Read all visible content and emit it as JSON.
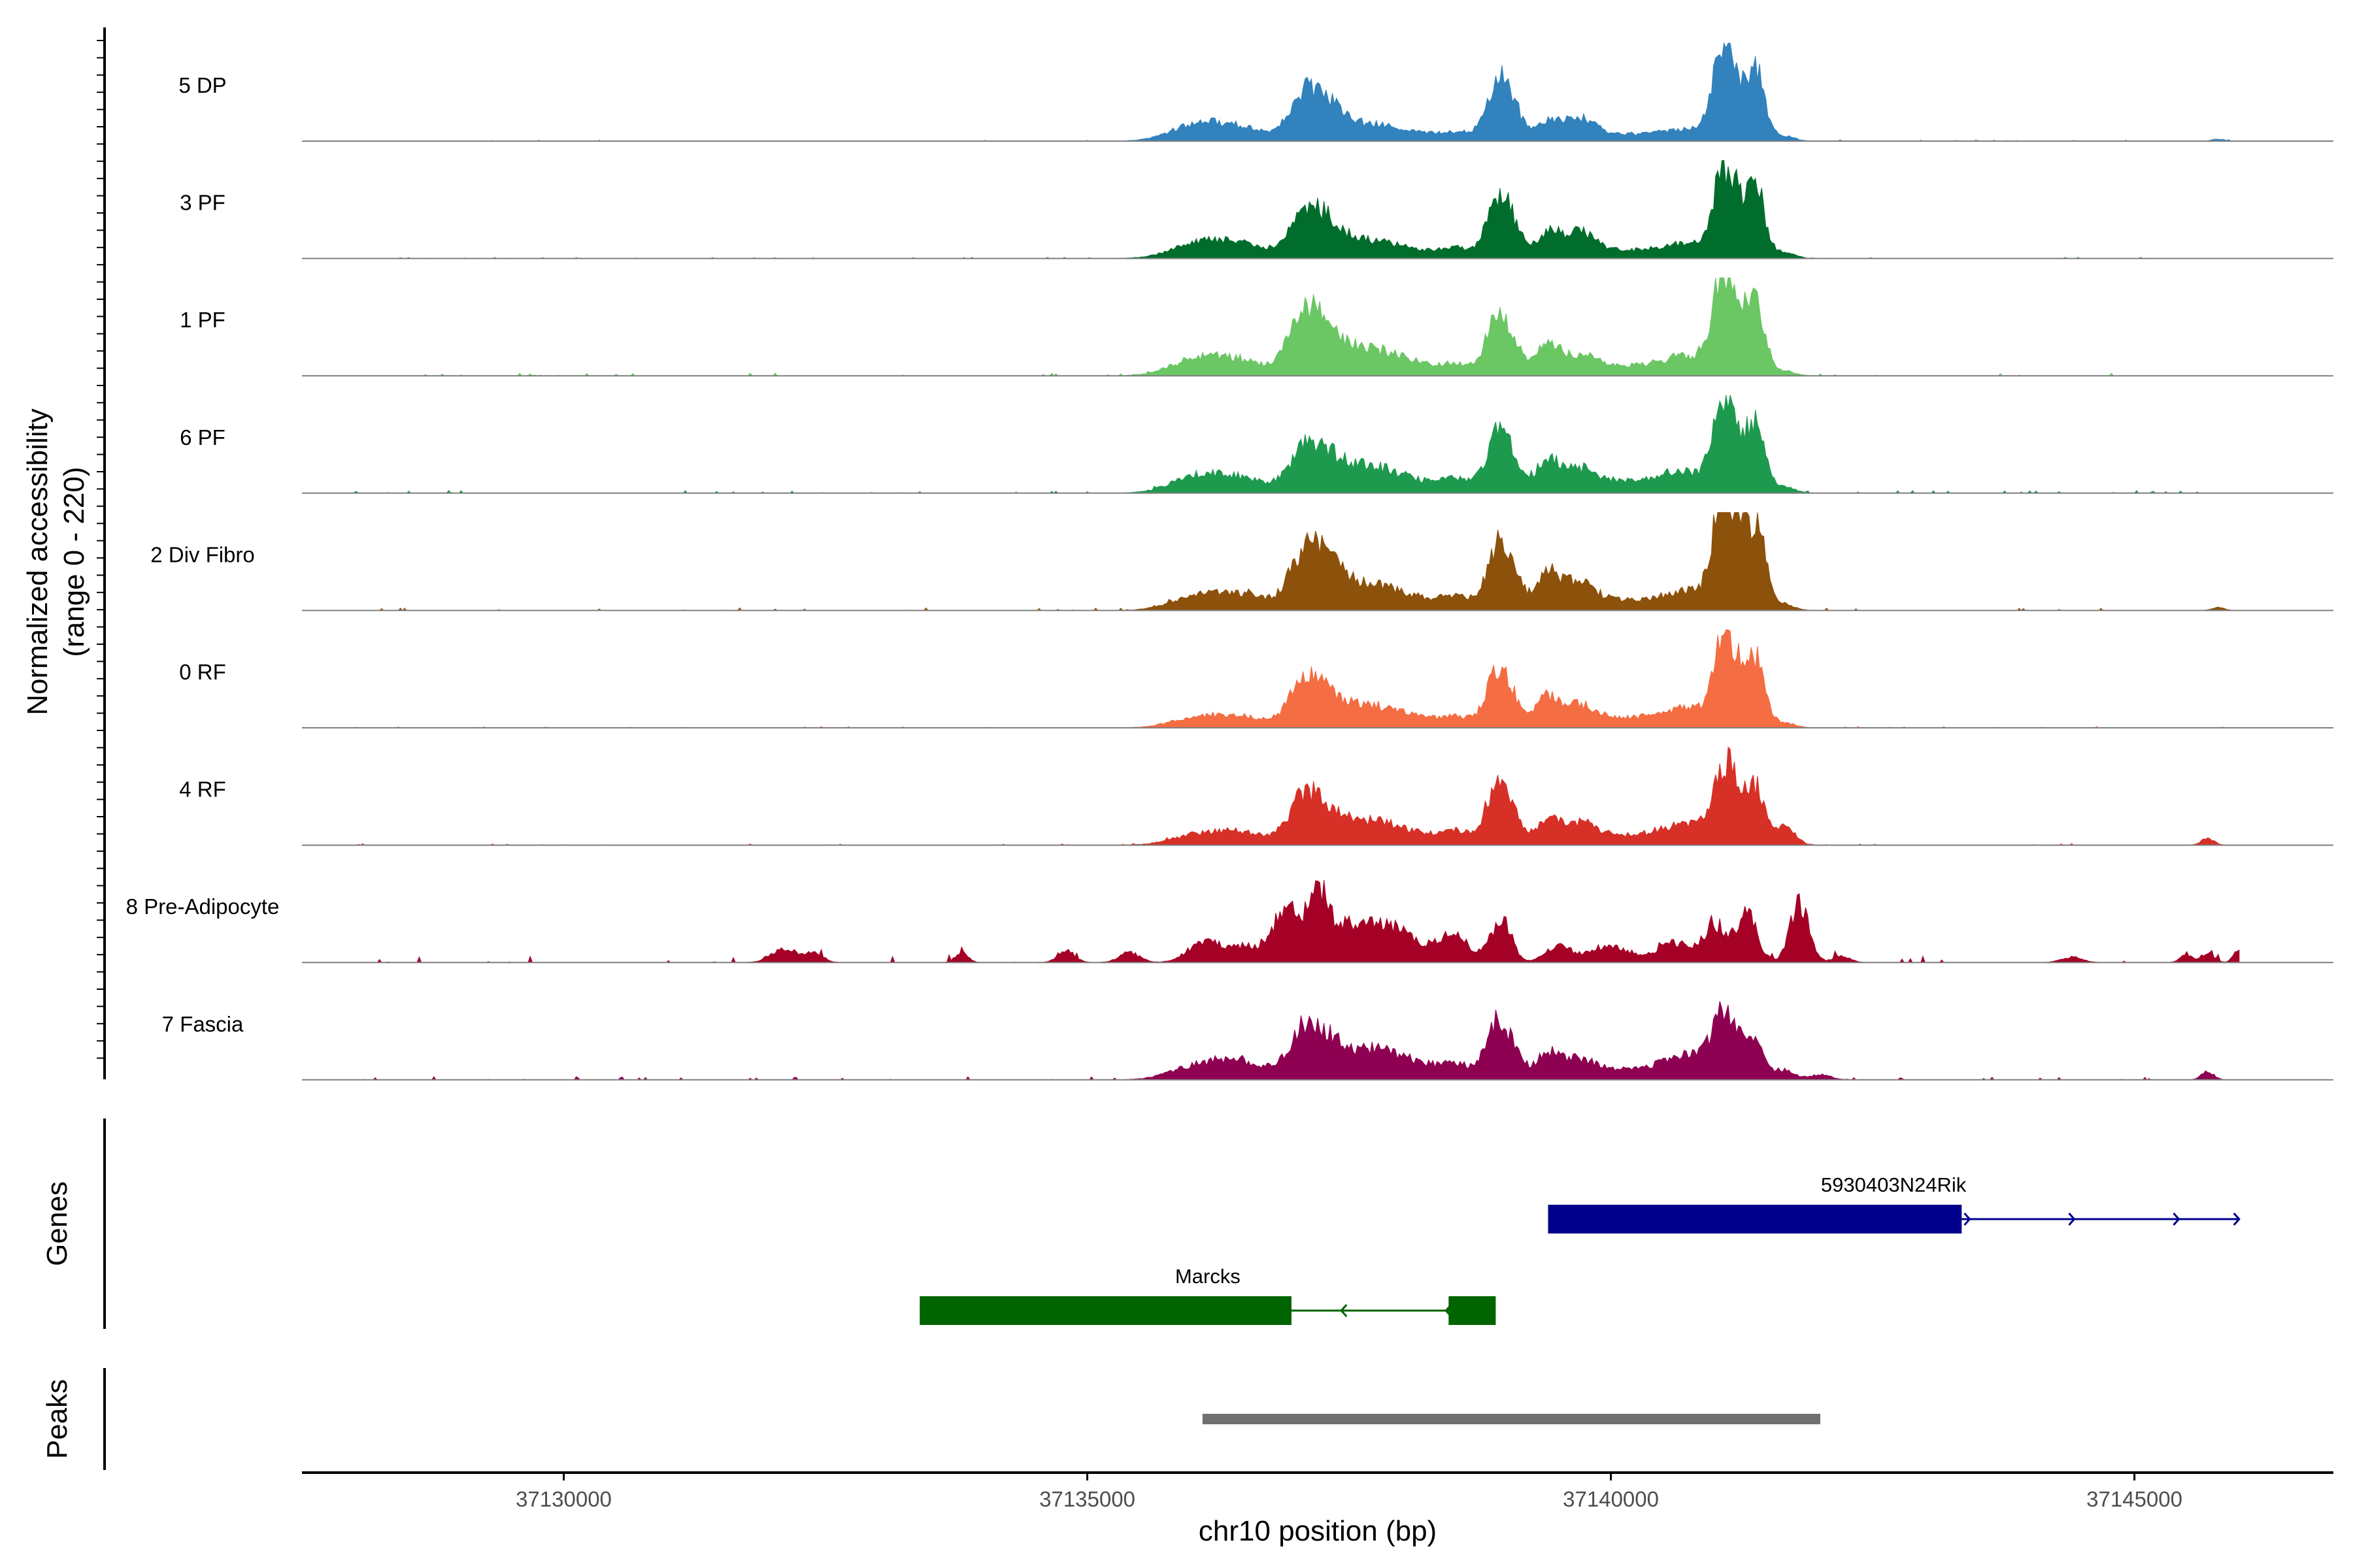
{
  "chart_data": {
    "type": "area",
    "y_axis_title": "Normalized accessibility",
    "y_axis_subtitle": "(range 0 - 220)",
    "y_range": [
      0,
      220
    ],
    "xlabel": "chr10 position (bp)",
    "xlim": [
      37127500,
      37146900
    ],
    "x_ticks": [
      37130000,
      37135000,
      37140000,
      37145000
    ],
    "x_tick_labels": [
      "37130000",
      "37135000",
      "37140000",
      "37145000"
    ],
    "tracks": [
      {
        "name": "5 DP",
        "color": "#3182BD",
        "noise": 0.4,
        "peaks": [
          [
            37136050,
            250,
            25
          ],
          [
            37136500,
            250,
            18
          ],
          [
            37137050,
            140,
            45
          ],
          [
            37137250,
            160,
            50
          ],
          [
            37137600,
            300,
            18
          ],
          [
            37138000,
            400,
            12
          ],
          [
            37138550,
            150,
            10
          ],
          [
            37138900,
            100,
            75
          ],
          [
            37139050,
            100,
            50
          ],
          [
            37139400,
            120,
            30
          ],
          [
            37139700,
            150,
            30
          ],
          [
            37140100,
            300,
            10
          ],
          [
            37140600,
            200,
            10
          ],
          [
            37141050,
            90,
            100
          ],
          [
            37141200,
            110,
            85
          ],
          [
            37141400,
            80,
            88
          ],
          [
            37140850,
            200,
            12
          ],
          [
            37141650,
            100,
            8
          ],
          [
            37145800,
            60,
            3
          ]
        ]
      },
      {
        "name": "3 PF",
        "color": "#006D2C",
        "noise": 0.4,
        "peaks": [
          [
            37136050,
            250,
            22
          ],
          [
            37136500,
            250,
            20
          ],
          [
            37137050,
            140,
            45
          ],
          [
            37137250,
            160,
            45
          ],
          [
            37137600,
            300,
            20
          ],
          [
            37138000,
            400,
            12
          ],
          [
            37138550,
            150,
            12
          ],
          [
            37138900,
            100,
            75
          ],
          [
            37139050,
            100,
            50
          ],
          [
            37139400,
            120,
            35
          ],
          [
            37139700,
            150,
            35
          ],
          [
            37140100,
            300,
            12
          ],
          [
            37140600,
            200,
            12
          ],
          [
            37141050,
            90,
            95
          ],
          [
            37141200,
            110,
            80
          ],
          [
            37141400,
            80,
            90
          ],
          [
            37140850,
            200,
            15
          ],
          [
            37141650,
            100,
            10
          ]
        ]
      },
      {
        "name": "1 PF",
        "color": "#6BC664",
        "noise": 1.0,
        "peaks": [
          [
            37136050,
            250,
            25
          ],
          [
            37136500,
            250,
            20
          ],
          [
            37137050,
            140,
            70
          ],
          [
            37137250,
            160,
            50
          ],
          [
            37137600,
            300,
            30
          ],
          [
            37138000,
            400,
            18
          ],
          [
            37138550,
            150,
            12
          ],
          [
            37138900,
            100,
            75
          ],
          [
            37139050,
            100,
            45
          ],
          [
            37139400,
            120,
            45
          ],
          [
            37139700,
            150,
            25
          ],
          [
            37140100,
            300,
            15
          ],
          [
            37140600,
            200,
            15
          ],
          [
            37141050,
            90,
            105
          ],
          [
            37141200,
            110,
            100
          ],
          [
            37141400,
            80,
            98
          ],
          [
            37140850,
            200,
            20
          ],
          [
            37141650,
            100,
            8
          ]
        ]
      },
      {
        "name": "6 PF",
        "color": "#1E9A4F",
        "noise": 1.0,
        "peaks": [
          [
            37136050,
            250,
            25
          ],
          [
            37136500,
            250,
            20
          ],
          [
            37137050,
            140,
            45
          ],
          [
            37137250,
            160,
            40
          ],
          [
            37137600,
            300,
            30
          ],
          [
            37138000,
            400,
            18
          ],
          [
            37138550,
            150,
            15
          ],
          [
            37138900,
            100,
            75
          ],
          [
            37139050,
            100,
            45
          ],
          [
            37139400,
            120,
            50
          ],
          [
            37139700,
            150,
            30
          ],
          [
            37140100,
            300,
            18
          ],
          [
            37140600,
            200,
            18
          ],
          [
            37141050,
            90,
            90
          ],
          [
            37141200,
            110,
            80
          ],
          [
            37141400,
            80,
            92
          ],
          [
            37140850,
            200,
            20
          ],
          [
            37141650,
            100,
            10
          ]
        ]
      },
      {
        "name": "2 Div Fibro",
        "color": "#8C510A",
        "noise": 1.0,
        "peaks": [
          [
            37136050,
            250,
            20
          ],
          [
            37136500,
            250,
            22
          ],
          [
            37137050,
            140,
            60
          ],
          [
            37137250,
            160,
            55
          ],
          [
            37137600,
            300,
            30
          ],
          [
            37138000,
            400,
            18
          ],
          [
            37138550,
            150,
            15
          ],
          [
            37138900,
            100,
            80
          ],
          [
            37139050,
            100,
            50
          ],
          [
            37139400,
            120,
            55
          ],
          [
            37139700,
            150,
            35
          ],
          [
            37140100,
            300,
            15
          ],
          [
            37140600,
            200,
            15
          ],
          [
            37141050,
            90,
            130
          ],
          [
            37141200,
            110,
            110
          ],
          [
            37141400,
            80,
            115
          ],
          [
            37140850,
            200,
            20
          ],
          [
            37141650,
            100,
            10
          ],
          [
            37145800,
            60,
            5
          ]
        ]
      },
      {
        "name": "0 RF",
        "color": "#F46D43",
        "noise": 0.5,
        "peaks": [
          [
            37136050,
            250,
            15
          ],
          [
            37136500,
            250,
            15
          ],
          [
            37137050,
            140,
            50
          ],
          [
            37137250,
            160,
            35
          ],
          [
            37137600,
            300,
            25
          ],
          [
            37138000,
            400,
            15
          ],
          [
            37138550,
            150,
            12
          ],
          [
            37138900,
            100,
            70
          ],
          [
            37139050,
            100,
            40
          ],
          [
            37139400,
            120,
            45
          ],
          [
            37139700,
            150,
            28
          ],
          [
            37140100,
            300,
            15
          ],
          [
            37140600,
            200,
            15
          ],
          [
            37141050,
            90,
            85
          ],
          [
            37141200,
            110,
            85
          ],
          [
            37141400,
            80,
            88
          ],
          [
            37140850,
            200,
            20
          ],
          [
            37141650,
            100,
            8
          ]
        ]
      },
      {
        "name": "4 RF",
        "color": "#D73027",
        "noise": 0.6,
        "peaks": [
          [
            37136050,
            250,
            15
          ],
          [
            37136500,
            250,
            18
          ],
          [
            37137050,
            140,
            55
          ],
          [
            37137250,
            160,
            35
          ],
          [
            37137600,
            300,
            25
          ],
          [
            37138000,
            400,
            18
          ],
          [
            37138550,
            150,
            15
          ],
          [
            37138900,
            100,
            80
          ],
          [
            37139050,
            100,
            40
          ],
          [
            37139400,
            120,
            35
          ],
          [
            37139700,
            150,
            28
          ],
          [
            37140100,
            300,
            15
          ],
          [
            37140600,
            200,
            18
          ],
          [
            37141050,
            90,
            75
          ],
          [
            37141200,
            110,
            80
          ],
          [
            37141400,
            80,
            70
          ],
          [
            37140850,
            200,
            20
          ],
          [
            37141650,
            100,
            30
          ],
          [
            37145700,
            60,
            10
          ]
        ]
      },
      {
        "name": "8 Pre-Adipocyte",
        "color": "#A50026",
        "noise": 2.5,
        "peaks": [
          [
            37132100,
            120,
            22
          ],
          [
            37132400,
            80,
            15
          ],
          [
            37133800,
            60,
            15
          ],
          [
            37134800,
            80,
            18
          ],
          [
            37135400,
            100,
            15
          ],
          [
            37136100,
            150,
            28
          ],
          [
            37136500,
            200,
            25
          ],
          [
            37136900,
            120,
            80
          ],
          [
            37137200,
            100,
            95
          ],
          [
            37137500,
            200,
            45
          ],
          [
            37137900,
            250,
            50
          ],
          [
            37138500,
            150,
            40
          ],
          [
            37138950,
            100,
            65
          ],
          [
            37139500,
            120,
            25
          ],
          [
            37140000,
            200,
            25
          ],
          [
            37140600,
            150,
            30
          ],
          [
            37141000,
            120,
            55
          ],
          [
            37141300,
            100,
            70
          ],
          [
            37141800,
            90,
            90
          ],
          [
            37142200,
            80,
            10
          ],
          [
            37144400,
            100,
            8
          ],
          [
            37145500,
            60,
            12
          ],
          [
            37145700,
            60,
            15
          ],
          [
            37146000,
            50,
            20
          ]
        ]
      },
      {
        "name": "7 Fascia",
        "color": "#8E0152",
        "noise": 1.2,
        "peaks": [
          [
            37136050,
            250,
            20
          ],
          [
            37136500,
            250,
            25
          ],
          [
            37137050,
            140,
            55
          ],
          [
            37137250,
            160,
            40
          ],
          [
            37137600,
            300,
            30
          ],
          [
            37138000,
            400,
            25
          ],
          [
            37138550,
            150,
            15
          ],
          [
            37138900,
            100,
            75
          ],
          [
            37139050,
            100,
            40
          ],
          [
            37139400,
            120,
            40
          ],
          [
            37139700,
            150,
            25
          ],
          [
            37140100,
            300,
            15
          ],
          [
            37140600,
            200,
            20
          ],
          [
            37141050,
            90,
            75
          ],
          [
            37141200,
            110,
            55
          ],
          [
            37141400,
            80,
            45
          ],
          [
            37140850,
            200,
            25
          ],
          [
            37141650,
            100,
            15
          ],
          [
            37142000,
            100,
            8
          ],
          [
            37145700,
            60,
            12
          ]
        ]
      }
    ],
    "genes": {
      "title": "Genes",
      "items": [
        {
          "name": "5930403N24Rik",
          "color": "#00008B",
          "strand": "+",
          "start": 37139400,
          "end": 37146000,
          "exons": [
            [
              37139400,
              37143350
            ]
          ],
          "row": 0
        },
        {
          "name": "Marcks",
          "color": "#006400",
          "strand": "-",
          "start": 37133400,
          "end": 37138900,
          "exons": [
            [
              37133400,
              37136950
            ],
            [
              37138450,
              37138900
            ]
          ],
          "row": 1
        }
      ]
    },
    "peaks": {
      "title": "Peaks",
      "color": "#707070",
      "regions": [
        [
          37136100,
          37142000
        ]
      ]
    }
  }
}
